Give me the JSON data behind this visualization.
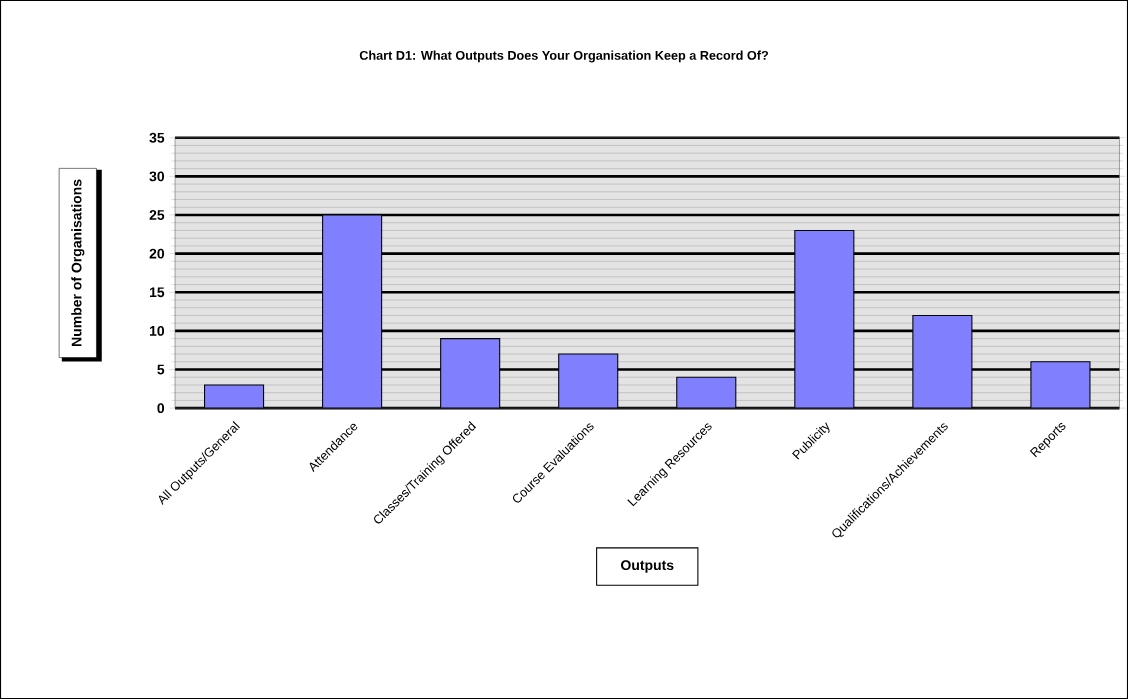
{
  "chart_data": {
    "type": "bar",
    "title": "Chart D1: What Outputs Does Your Organisation Keep a Record Of?",
    "xlabel": "Outputs",
    "ylabel": "Number of Organisations",
    "categories": [
      "All Outputs/General",
      "Attendance",
      "Classes/Training Offered",
      "Course Evaluations",
      "Learning Resources",
      "Publicity",
      "Qualifications/Achievements",
      "Reports"
    ],
    "values": [
      3,
      25,
      9,
      7,
      4,
      23,
      12,
      6
    ],
    "color": "#8080ff",
    "ylim": [
      0,
      35
    ],
    "yticks": [
      0,
      5,
      10,
      15,
      20,
      25,
      30,
      35
    ],
    "grid": "y"
  }
}
